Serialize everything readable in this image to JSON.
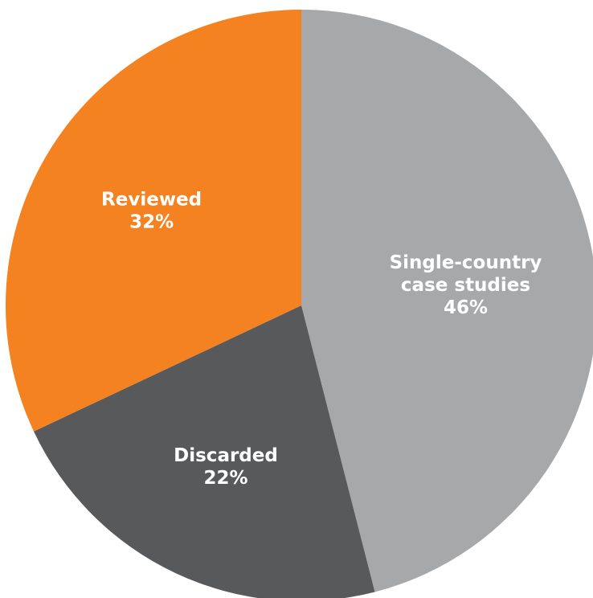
{
  "chart_data": {
    "type": "pie",
    "slices": [
      {
        "name": "case-studies",
        "label_lines": [
          "Single-country",
          "case studies",
          "46%"
        ],
        "value": 46,
        "color": "#a7a8aa"
      },
      {
        "name": "discarded",
        "label_lines": [
          "Discarded",
          "22%"
        ],
        "value": 22,
        "color": "#58595b"
      },
      {
        "name": "reviewed",
        "label_lines": [
          "Reviewed",
          "32%"
        ],
        "value": 32,
        "color": "#f58220"
      }
    ],
    "start_angle_deg": 0,
    "direction": "clockwise",
    "legend": "none",
    "labels": "inside"
  }
}
